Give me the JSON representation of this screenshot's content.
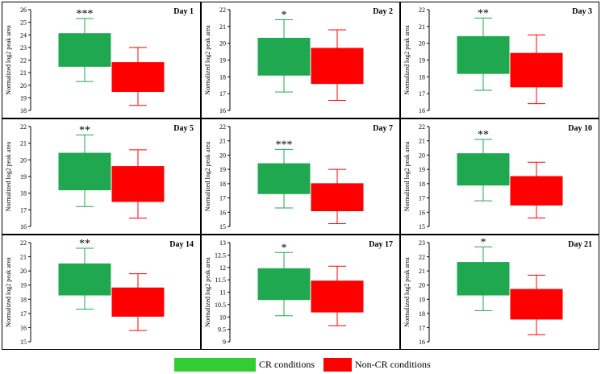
{
  "colors": {
    "cr": "#1fa84f",
    "noncr": "#ff0000",
    "cr_legend": "#33cc33",
    "noncr_legend": "#ff0000",
    "border": "#000000"
  },
  "legend": {
    "cr_label": "CR conditions",
    "noncr_label": "Non-CR conditions"
  },
  "chart_data": [
    {
      "type": "box",
      "title": "Day 1",
      "ylabel": "Normalized log2 peak area",
      "ylim": [
        18,
        26
      ],
      "ticks": [
        18,
        19,
        20,
        21,
        22,
        23,
        24,
        25,
        26
      ],
      "significance": "***",
      "series": [
        {
          "name": "CR conditions",
          "whisker_low": 20.3,
          "q1": 21.5,
          "q3": 24.1,
          "whisker_high": 25.3
        },
        {
          "name": "Non-CR conditions",
          "whisker_low": 18.4,
          "q1": 19.5,
          "q3": 21.8,
          "whisker_high": 23.0
        }
      ]
    },
    {
      "type": "box",
      "title": "Day 2",
      "ylabel": "Normalized log2 peak area",
      "ylim": [
        16,
        22
      ],
      "ticks": [
        16,
        17,
        18,
        19,
        20,
        21,
        22
      ],
      "significance": "*",
      "series": [
        {
          "name": "CR conditions",
          "whisker_low": 17.1,
          "q1": 18.1,
          "q3": 20.3,
          "whisker_high": 21.4
        },
        {
          "name": "Non-CR conditions",
          "whisker_low": 16.6,
          "q1": 17.6,
          "q3": 19.7,
          "whisker_high": 20.8
        }
      ]
    },
    {
      "type": "box",
      "title": "Day 3",
      "ylabel": "Normalized log2 peak area",
      "ylim": [
        16,
        22
      ],
      "ticks": [
        16,
        17,
        18,
        19,
        20,
        21,
        22
      ],
      "significance": "**",
      "series": [
        {
          "name": "CR conditions",
          "whisker_low": 17.2,
          "q1": 18.2,
          "q3": 20.4,
          "whisker_high": 21.5
        },
        {
          "name": "Non-CR conditions",
          "whisker_low": 16.4,
          "q1": 17.4,
          "q3": 19.4,
          "whisker_high": 20.5
        }
      ]
    },
    {
      "type": "box",
      "title": "Day 5",
      "ylabel": "Normalized log2 peak area",
      "ylim": [
        16,
        22
      ],
      "ticks": [
        16,
        17,
        18,
        19,
        20,
        21,
        22
      ],
      "significance": "**",
      "series": [
        {
          "name": "CR conditions",
          "whisker_low": 17.2,
          "q1": 18.2,
          "q3": 20.4,
          "whisker_high": 21.5
        },
        {
          "name": "Non-CR conditions",
          "whisker_low": 16.5,
          "q1": 17.5,
          "q3": 19.6,
          "whisker_high": 20.6
        }
      ]
    },
    {
      "type": "box",
      "title": "Day 7",
      "ylabel": "Normalized log2 peak area",
      "ylim": [
        15,
        22
      ],
      "ticks": [
        15,
        16,
        17,
        18,
        19,
        20,
        21,
        22
      ],
      "significance": "***",
      "series": [
        {
          "name": "CR conditions",
          "whisker_low": 16.3,
          "q1": 17.3,
          "q3": 19.4,
          "whisker_high": 20.4
        },
        {
          "name": "Non-CR conditions",
          "whisker_low": 15.2,
          "q1": 16.1,
          "q3": 18.0,
          "whisker_high": 19.0
        }
      ]
    },
    {
      "type": "box",
      "title": "Day 10",
      "ylabel": "Normalized log2 peak area",
      "ylim": [
        15,
        22
      ],
      "ticks": [
        15,
        16,
        17,
        18,
        19,
        20,
        21,
        22
      ],
      "significance": "**",
      "series": [
        {
          "name": "CR conditions",
          "whisker_low": 16.8,
          "q1": 17.9,
          "q3": 20.1,
          "whisker_high": 21.1
        },
        {
          "name": "Non-CR conditions",
          "whisker_low": 15.6,
          "q1": 16.5,
          "q3": 18.5,
          "whisker_high": 19.5
        }
      ]
    },
    {
      "type": "box",
      "title": "Day 14",
      "ylabel": "Normalized log2 peak area",
      "ylim": [
        15,
        22
      ],
      "ticks": [
        15,
        16,
        17,
        18,
        19,
        20,
        21,
        22
      ],
      "significance": "**",
      "series": [
        {
          "name": "CR conditions",
          "whisker_low": 17.3,
          "q1": 18.3,
          "q3": 20.5,
          "whisker_high": 21.6
        },
        {
          "name": "Non-CR conditions",
          "whisker_low": 15.8,
          "q1": 16.8,
          "q3": 18.8,
          "whisker_high": 19.8
        }
      ]
    },
    {
      "type": "box",
      "title": "Day 17",
      "ylabel": "Normalized log2 peak area",
      "ylim": [
        9,
        13
      ],
      "ticks": [
        9,
        9.5,
        10,
        10.5,
        11,
        11.5,
        12,
        12.5,
        13
      ],
      "significance": "*",
      "series": [
        {
          "name": "CR conditions",
          "whisker_low": 10.05,
          "q1": 10.7,
          "q3": 11.95,
          "whisker_high": 12.6
        },
        {
          "name": "Non-CR conditions",
          "whisker_low": 9.65,
          "q1": 10.2,
          "q3": 11.45,
          "whisker_high": 12.05
        }
      ]
    },
    {
      "type": "box",
      "title": "Day 21",
      "ylabel": "Normalized log2 peak area",
      "ylim": [
        16,
        23
      ],
      "ticks": [
        16,
        17,
        18,
        19,
        20,
        21,
        22,
        23
      ],
      "significance": "*",
      "series": [
        {
          "name": "CR conditions",
          "whisker_low": 18.2,
          "q1": 19.3,
          "q3": 21.6,
          "whisker_high": 22.7
        },
        {
          "name": "Non-CR conditions",
          "whisker_low": 16.5,
          "q1": 17.6,
          "q3": 19.7,
          "whisker_high": 20.7
        }
      ]
    }
  ]
}
